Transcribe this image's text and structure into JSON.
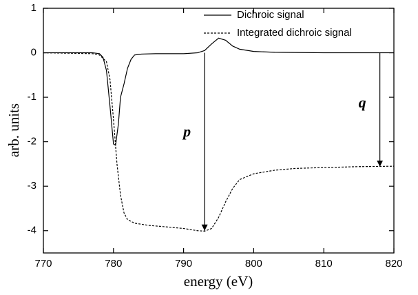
{
  "chart_data": {
    "type": "line",
    "xlabel": "energy (eV)",
    "ylabel": "arb. units",
    "xlim": [
      770,
      820
    ],
    "xticks": [
      770,
      780,
      790,
      800,
      810,
      820
    ],
    "ylim": [
      -4.5,
      1
    ],
    "yticks": [
      1,
      0,
      -1,
      -2,
      -3,
      -4
    ],
    "legend": "upper right",
    "series": [
      {
        "name": "Dichroic signal",
        "color": "#000000",
        "style": "solid",
        "x": [
          770,
          775,
          777,
          778,
          778.5,
          779,
          779.5,
          780,
          780.3,
          780.7,
          781,
          781.5,
          782,
          782.5,
          783,
          784,
          786,
          790,
          792,
          793,
          794,
          795,
          796,
          797,
          798,
          800,
          803,
          810,
          820
        ],
        "values": [
          0,
          0,
          0,
          -0.02,
          -0.1,
          -0.4,
          -1.2,
          -2.05,
          -2.08,
          -1.6,
          -1.0,
          -0.7,
          -0.35,
          -0.15,
          -0.05,
          -0.03,
          -0.02,
          -0.02,
          0,
          0.05,
          0.2,
          0.33,
          0.28,
          0.15,
          0.08,
          0.03,
          0.01,
          0,
          0
        ]
      },
      {
        "name": "Integrated dichroic signal",
        "color": "#000000",
        "style": "dashed",
        "x": [
          770,
          777,
          778,
          779,
          779.5,
          780,
          780.5,
          781,
          781.5,
          782,
          783,
          785,
          788,
          790,
          792,
          793,
          794,
          795,
          796,
          797,
          798,
          800,
          803,
          806,
          810,
          815,
          820
        ],
        "values": [
          0,
          -0.02,
          -0.05,
          -0.2,
          -0.6,
          -1.5,
          -2.5,
          -3.2,
          -3.6,
          -3.75,
          -3.83,
          -3.88,
          -3.92,
          -3.95,
          -4.0,
          -4.01,
          -3.95,
          -3.7,
          -3.35,
          -3.05,
          -2.85,
          -2.72,
          -2.64,
          -2.6,
          -2.58,
          -2.56,
          -2.55
        ]
      }
    ],
    "annotations": [
      {
        "label": "p",
        "x": 793,
        "from": 0,
        "to": -4.0
      },
      {
        "label": "q",
        "x": 818,
        "from": 0,
        "to": -2.56
      }
    ]
  }
}
